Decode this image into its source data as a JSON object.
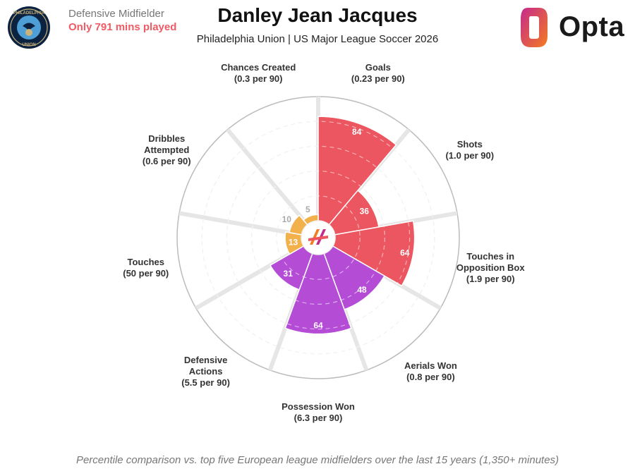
{
  "header": {
    "position": "Defensive Midfielder",
    "minutes_note": "Only 791 mins played",
    "title": "Danley Jean Jacques",
    "subtitle": "Philadelphia Union | US Major League Soccer 2026",
    "brand": "Opta"
  },
  "footnote": "Percentile comparison vs. top five European league midfielders over the last 15 years (1,350+ minutes)",
  "colors": {
    "attacking": "#ec5660",
    "possession": "#b44cd6",
    "defending": "#f2b14b",
    "grid": "#cccccc",
    "brand_orange": "#f47b20",
    "brand_magenta": "#c42a8c"
  },
  "chart_data": {
    "type": "polar-bar",
    "start_at": "top",
    "direction": "clockwise",
    "rlim": [
      0,
      100
    ],
    "ring_ticks": [
      20,
      40,
      60,
      80,
      100
    ],
    "categories": [
      {
        "name": "Goals",
        "stat": "(0.23 per 90)",
        "value": 84,
        "group": "attacking"
      },
      {
        "name": "Shots",
        "stat": "(1.0 per 90)",
        "value": 36,
        "group": "attacking"
      },
      {
        "name": "Touches in Opposition Box",
        "name_lines": [
          "Touches in",
          "Opposition Box"
        ],
        "stat": "(1.9 per 90)",
        "value": 64,
        "group": "attacking"
      },
      {
        "name": "Aerials Won",
        "stat": "(0.8 per 90)",
        "value": 48,
        "group": "possession"
      },
      {
        "name": "Possession Won",
        "stat": "(6.3 per 90)",
        "value": 64,
        "group": "possession"
      },
      {
        "name": "Defensive Actions",
        "name_lines": [
          "Defensive",
          "Actions"
        ],
        "stat": "(5.5 per 90)",
        "value": 31,
        "group": "possession"
      },
      {
        "name": "Touches",
        "stat": "(50 per 90)",
        "value": 13,
        "group": "defending"
      },
      {
        "name": "Dribbles Attempted",
        "name_lines": [
          "Dribbles",
          "Attempted"
        ],
        "stat": "(0.6 per 90)",
        "value": 10,
        "group": "defending"
      },
      {
        "name": "Chances Created",
        "stat": "(0.3 per 90)",
        "value": 5,
        "group": "defending"
      }
    ]
  }
}
